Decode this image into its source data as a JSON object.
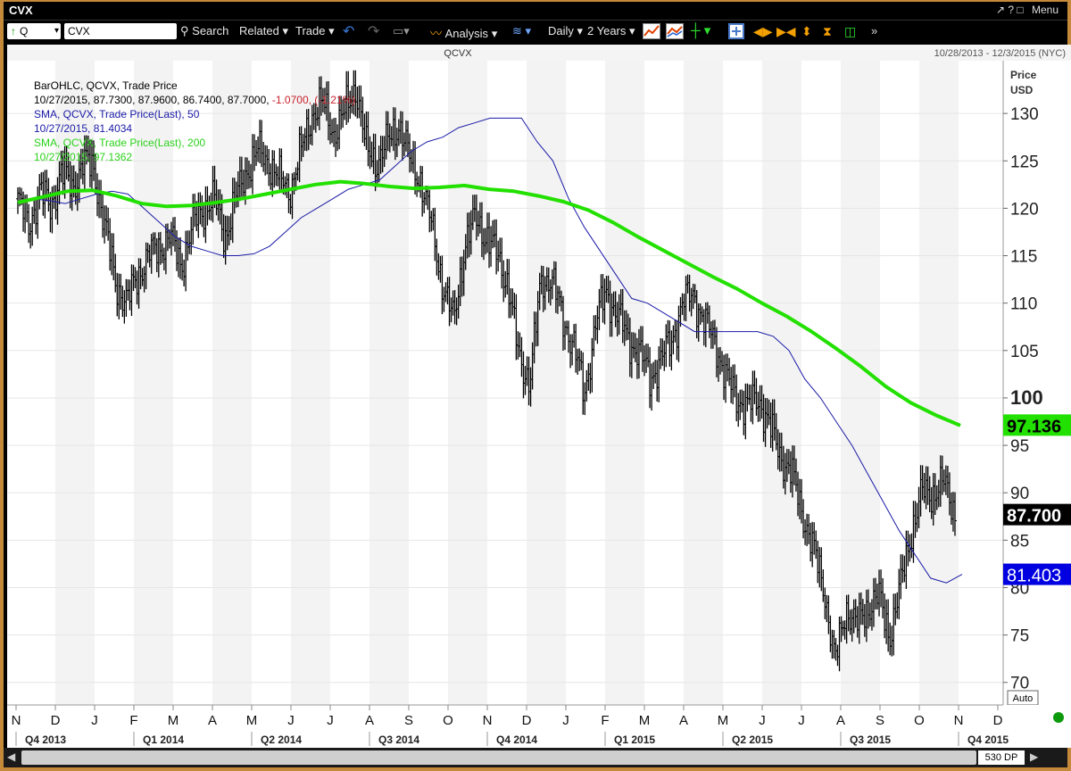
{
  "window": {
    "title": "CVX",
    "menu_label": "Menu",
    "controls": "↗ ? □"
  },
  "toolbar": {
    "security_type": "Q",
    "ticker_value": "CVX",
    "search_label": "Search",
    "related_label": "Related",
    "trade_label": "Trade",
    "analysis_label": "Analysis",
    "period_label": "Daily",
    "range_label": "2 Years"
  },
  "chart": {
    "symbol": "QCVX",
    "date_range": "10/28/2013 - 12/3/2015 (NYC)",
    "legend": {
      "ohlc_title": "BarOHLC, QCVX, Trade Price",
      "ohlc_values": "10/27/2015, 87.7300, 87.9600, 86.7400, 87.7000,",
      "ohlc_change": "-1.0700, (-1.21%)",
      "sma50_title": "SMA, QCVX, Trade Price(Last),  50",
      "sma50_value": "10/27/2015, 81.4034",
      "sma200_title": "SMA, QCVX, Trade Price(Last),  200",
      "sma200_value": "10/27/2015, 97.1362"
    },
    "price_axis_title_1": "Price",
    "price_axis_title_2": "USD",
    "auto_label": "Auto",
    "dp_label": "530 DP",
    "badges": {
      "sma200": "97.136",
      "last": "87.700",
      "sma50": "81.403"
    },
    "colors": {
      "price": "#000000",
      "sma50": "#1a1aa8",
      "sma200": "#22e000",
      "change": "#c8202a",
      "sma50_badge": "#0000e0",
      "sma200_badge": "#22e000"
    }
  },
  "chart_data": {
    "type": "line",
    "title": "QCVX",
    "ylabel": "Price USD",
    "ylim": [
      68,
      135
    ],
    "yticks": [
      70,
      75,
      80,
      85,
      90,
      95,
      100,
      105,
      110,
      115,
      120,
      125,
      130
    ],
    "month_ticks": [
      "N",
      "D",
      "J",
      "F",
      "M",
      "A",
      "M",
      "J",
      "J",
      "A",
      "S",
      "O",
      "N",
      "D",
      "J",
      "F",
      "M",
      "A",
      "M",
      "J",
      "J",
      "A",
      "S",
      "O",
      "N",
      "D"
    ],
    "quarter_labels": [
      "Q4 2013",
      "Q1 2014",
      "Q2 2014",
      "Q3 2014",
      "Q4 2014",
      "Q1 2015",
      "Q2 2015",
      "Q3 2015",
      "Q4 2015"
    ],
    "series": [
      {
        "name": "BarOHLC, QCVX, Trade Price",
        "values": [
          121,
          118,
          122,
          120,
          124,
          122,
          125,
          124,
          118,
          112,
          110,
          113,
          115,
          116,
          117,
          114,
          118,
          120,
          121,
          117,
          121,
          124,
          126,
          125,
          123,
          122,
          126,
          130,
          131,
          128,
          130,
          133,
          126,
          125,
          127,
          129,
          125,
          123,
          118,
          112,
          108,
          116,
          119,
          117,
          115,
          112,
          104,
          102,
          112,
          113,
          108,
          106,
          100,
          108,
          111,
          109,
          106,
          105,
          102,
          104,
          106,
          110,
          111,
          108,
          106,
          102,
          100,
          99,
          100,
          97,
          94,
          92,
          88,
          84,
          80,
          72,
          78,
          76,
          78,
          79,
          75,
          80,
          86,
          90,
          90,
          91,
          88
        ]
      },
      {
        "name": "SMA, QCVX, Trade Price(Last),  50",
        "values": [
          120.5,
          121,
          120.8,
          120.5,
          121,
          121.5,
          121.8,
          121.5,
          120,
          118.5,
          117,
          116,
          115.5,
          115,
          115,
          115.2,
          116,
          117.5,
          119,
          120,
          121,
          122,
          122.5,
          123,
          124.5,
          126,
          127,
          127.5,
          128.5,
          129,
          129.5,
          129.5,
          129.5,
          127,
          125,
          121,
          118,
          115.5,
          113,
          110.5,
          110,
          109,
          108,
          107,
          107,
          107,
          107,
          107,
          106.5,
          105,
          102,
          100,
          97.5,
          95,
          92,
          89,
          86,
          83.5,
          81,
          80.5,
          81.4
        ]
      },
      {
        "name": "SMA, QCVX, Trade Price(Last),  200",
        "values": [
          120.6,
          121.2,
          121.8,
          121.9,
          121.3,
          120.5,
          120.2,
          120.3,
          120.6,
          121,
          121.5,
          122,
          122.5,
          122.8,
          122.6,
          122.3,
          122.1,
          122.2,
          122.4,
          122,
          121.8,
          121.3,
          120.7,
          119.8,
          118.5,
          117,
          115.6,
          114.2,
          112.8,
          111.5,
          110,
          108.6,
          107,
          105.2,
          103.3,
          101.2,
          99.5,
          98.2,
          97.1
        ]
      }
    ]
  }
}
